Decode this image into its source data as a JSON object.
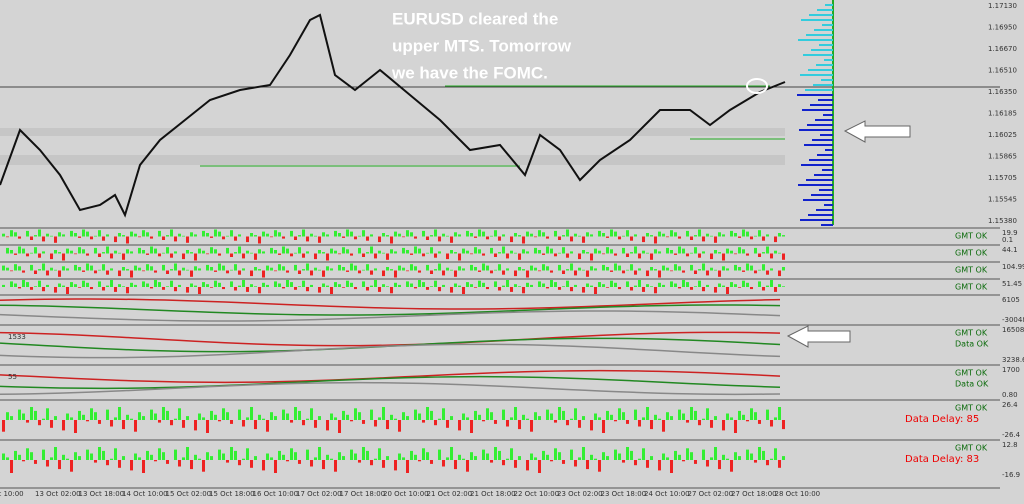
{
  "annotation": [
    "EURUSD cleared the",
    "upper MTS. Tomorrow",
    "we have the FOMC."
  ],
  "price_axis": [
    "1.17130",
    "1.16950",
    "1.16670",
    "1.16510",
    "1.16350",
    "1.16185",
    "1.16025",
    "1.15865",
    "1.15705",
    "1.15545",
    "1.15380"
  ],
  "panels": [
    {
      "status": [
        "GMT OK"
      ],
      "scale": [
        "19.9",
        "0.1"
      ]
    },
    {
      "status": [
        "GMT OK"
      ],
      "scale": [
        "44.1"
      ]
    },
    {
      "status": [
        "GMT OK"
      ],
      "scale": [
        "104.99"
      ]
    },
    {
      "status": [
        "GMT OK"
      ],
      "scale": [
        "51.45"
      ]
    },
    {
      "status": [],
      "scale": [
        "6105",
        "-30048"
      ]
    },
    {
      "status": [
        "GMT OK",
        "Data OK"
      ],
      "label": "1533",
      "scale": [
        "16508",
        "3238.6"
      ]
    },
    {
      "status": [
        "GMT OK",
        "Data OK"
      ],
      "label": "55",
      "scale": [
        "1700",
        "0.80"
      ]
    },
    {
      "status": [
        "GMT OK",
        "Data Delay: 85"
      ],
      "scale": [
        "26.4",
        "-26.4"
      ]
    },
    {
      "status": [
        "GMT OK",
        "Data Delay: 83"
      ],
      "scale": [
        "12.8",
        "-16.9"
      ]
    }
  ],
  "dates": [
    "12 Oct 10:00",
    "13 Oct 02:00",
    "13 Oct 18:00",
    "14 Oct 10:00",
    "15 Oct 02:00",
    "15 Oct 18:00",
    "16 Oct 10:00",
    "17 Oct 02:00",
    "17 Oct 18:00",
    "20 Oct 10:00",
    "21 Oct 02:00",
    "21 Oct 18:00",
    "22 Oct 10:00",
    "23 Oct 02:00",
    "23 Oct 18:00",
    "24 Oct 10:00",
    "27 Oct 02:00",
    "27 Oct 18:00",
    "28 Oct 10:00"
  ]
}
